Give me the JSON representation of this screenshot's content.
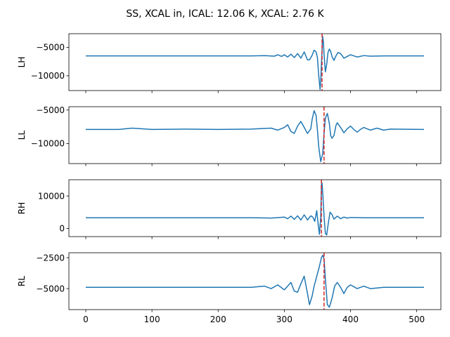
{
  "chart_data": {
    "type": "line",
    "title": "SS, XCAL in, ICAL: 12.06 K, XCAL: 2.76 K",
    "xlim": [
      -25.5,
      536.5
    ],
    "xticks": [
      0,
      100,
      200,
      300,
      400,
      500
    ],
    "line_color": "#1f77b4",
    "marker_color": "#d62728",
    "subplots": [
      {
        "ylabel": "LH",
        "ylim": [
          -12600,
          -2600
        ],
        "yticks": [
          -5000,
          -10000
        ],
        "ytick_labels": [
          "−5000",
          "−10000"
        ],
        "baseline": -6500,
        "marker_x": 357,
        "series": {
          "x": [
            0,
            250,
            270,
            285,
            290,
            296,
            300,
            305,
            310,
            315,
            320,
            325,
            330,
            335,
            338,
            342,
            345,
            348,
            350,
            352,
            354,
            355,
            356,
            357,
            358,
            359,
            360,
            362,
            364,
            366,
            368,
            370,
            372,
            375,
            378,
            381,
            385,
            390,
            395,
            400,
            410,
            420,
            430,
            450,
            511
          ],
          "y": [
            -6500,
            -6500,
            -6450,
            -6550,
            -6300,
            -6600,
            -6300,
            -6700,
            -6200,
            -6800,
            -6100,
            -6900,
            -5800,
            -7200,
            -7200,
            -6400,
            -5500,
            -5800,
            -6800,
            -10000,
            -12400,
            -11000,
            -8000,
            -5500,
            -3100,
            -4000,
            -6200,
            -9300,
            -8000,
            -5900,
            -5300,
            -5700,
            -6600,
            -7300,
            -6500,
            -5900,
            -6100,
            -6900,
            -6600,
            -6300,
            -6700,
            -6450,
            -6550,
            -6500,
            -6500
          ]
        }
      },
      {
        "ylabel": "LL",
        "ylim": [
          -13000,
          -4500
        ],
        "yticks": [
          -5000,
          -10000
        ],
        "ytick_labels": [
          "−5000",
          "−10000"
        ],
        "baseline": -7900,
        "marker_x": 360,
        "series": {
          "x": [
            0,
            50,
            70,
            100,
            150,
            200,
            250,
            280,
            290,
            300,
            305,
            310,
            315,
            320,
            325,
            330,
            335,
            340,
            342,
            345,
            348,
            350,
            352,
            355,
            358,
            360,
            362,
            365,
            368,
            370,
            372,
            375,
            378,
            380,
            385,
            390,
            395,
            400,
            405,
            410,
            415,
            420,
            430,
            440,
            450,
            460,
            511
          ],
          "y": [
            -7900,
            -7900,
            -7700,
            -7900,
            -7850,
            -7900,
            -7850,
            -7700,
            -8000,
            -7600,
            -7200,
            -8200,
            -8500,
            -7400,
            -6700,
            -7600,
            -8500,
            -7800,
            -6400,
            -5100,
            -5800,
            -8000,
            -10500,
            -12700,
            -11500,
            -8500,
            -6200,
            -5500,
            -7000,
            -8800,
            -9200,
            -8800,
            -7300,
            -6900,
            -7600,
            -8400,
            -7800,
            -7400,
            -7900,
            -8300,
            -7900,
            -7600,
            -8000,
            -7700,
            -8000,
            -7850,
            -7900
          ]
        }
      },
      {
        "ylabel": "RH",
        "ylim": [
          -2500,
          15000
        ],
        "yticks": [
          10000,
          0
        ],
        "ytick_labels": [
          "10000",
          "0"
        ],
        "baseline": 3300,
        "marker_x": 356,
        "series": {
          "x": [
            0,
            250,
            280,
            300,
            305,
            310,
            315,
            320,
            325,
            330,
            335,
            340,
            343,
            346,
            349,
            351,
            353,
            355,
            356,
            357,
            358,
            360,
            362,
            364,
            366,
            369,
            372,
            375,
            380,
            385,
            390,
            395,
            400,
            420,
            511
          ],
          "y": [
            3300,
            3300,
            3200,
            3500,
            3000,
            3800,
            2800,
            3900,
            2600,
            4200,
            2600,
            3900,
            3500,
            2200,
            5500,
            1500,
            -1800,
            3500,
            13500,
            14000,
            11000,
            3800,
            -1500,
            -2000,
            1000,
            5000,
            4300,
            2900,
            3800,
            3000,
            3500,
            3200,
            3400,
            3300,
            3300
          ]
        }
      },
      {
        "ylabel": "RL",
        "ylim": [
          -6700,
          -2100
        ],
        "yticks": [
          -2500,
          -5000
        ],
        "ytick_labels": [
          "−2500",
          "−5000"
        ],
        "baseline": -4900,
        "marker_x": 360,
        "series": {
          "x": [
            0,
            250,
            270,
            280,
            290,
            300,
            310,
            315,
            320,
            325,
            330,
            335,
            338,
            342,
            345,
            350,
            353,
            356,
            358,
            360,
            362,
            365,
            368,
            372,
            376,
            380,
            385,
            390,
            395,
            400,
            410,
            420,
            430,
            450,
            511
          ],
          "y": [
            -4900,
            -4900,
            -4800,
            -5000,
            -4700,
            -5100,
            -4500,
            -5200,
            -5300,
            -4600,
            -4000,
            -5400,
            -6300,
            -5600,
            -4800,
            -3800,
            -3200,
            -2500,
            -2300,
            -2600,
            -4200,
            -6300,
            -6500,
            -5800,
            -4800,
            -4500,
            -4900,
            -5400,
            -4900,
            -4700,
            -5000,
            -4800,
            -5000,
            -4900,
            -4900
          ]
        }
      }
    ]
  }
}
